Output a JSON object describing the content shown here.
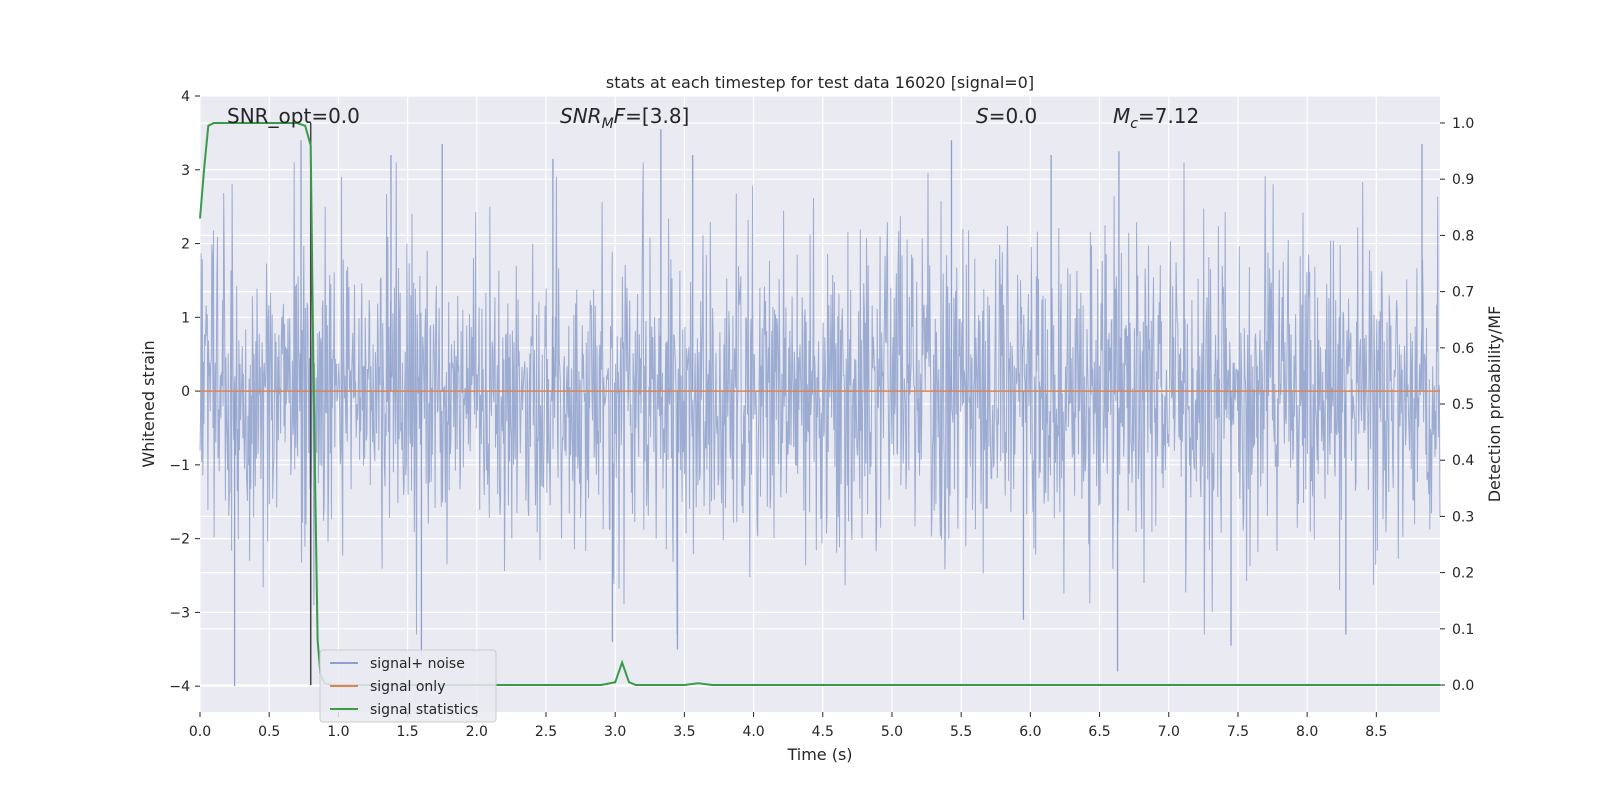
{
  "chart_data": {
    "type": "line",
    "title": "stats at each timestep for test data 16020 [signal=0]",
    "xlabel": "Time (s)",
    "ylabel": "Whitened strain",
    "y2label": "Detection probability/MF",
    "xlim": [
      0.0,
      8.96
    ],
    "ylim": [
      -4.35,
      4.0
    ],
    "y2lim": [
      -0.048,
      1.048
    ],
    "xticks": [
      0.0,
      0.5,
      1.0,
      1.5,
      2.0,
      2.5,
      3.0,
      3.5,
      4.0,
      4.5,
      5.0,
      5.5,
      6.0,
      6.5,
      7.0,
      7.5,
      8.0,
      8.5
    ],
    "xtick_labels": [
      "0.0",
      "0.5",
      "1.0",
      "1.5",
      "2.0",
      "2.5",
      "3.0",
      "3.5",
      "4.0",
      "4.5",
      "5.0",
      "5.5",
      "6.0",
      "6.5",
      "7.0",
      "7.5",
      "8.0",
      "8.5"
    ],
    "yticks": [
      -4,
      -3,
      -2,
      -1,
      0,
      1,
      2,
      3,
      4
    ],
    "ytick_labels": [
      "−4",
      "−3",
      "−2",
      "−1",
      "0",
      "1",
      "2",
      "3",
      "4"
    ],
    "y2ticks": [
      0.0,
      0.1,
      0.2,
      0.3,
      0.4,
      0.5,
      0.6,
      0.7,
      0.8,
      0.9,
      1.0
    ],
    "y2tick_labels": [
      "0.0",
      "0.1",
      "0.2",
      "0.3",
      "0.4",
      "0.5",
      "0.6",
      "0.7",
      "0.8",
      "0.9",
      "1.0"
    ],
    "grid": true,
    "legend_position": "bottom-left",
    "annotations": {
      "snr_opt": "SNR_opt=0.0",
      "snr_mf_base": "SNR",
      "snr_mf_sub": "M",
      "snr_mf_rest": "F",
      "snr_mf_value": "=[3.8]",
      "s_var": "S",
      "s_value": "=0.0",
      "mc_var": "M",
      "mc_sub": "c",
      "mc_value": "=7.12"
    },
    "vline_x": 0.8,
    "series": [
      {
        "name": "signal+ noise",
        "color": "#8da0cb",
        "axis": "left",
        "sampling": "noise, ~1.1 amplitude, extremes near ±3.5 to ±4",
        "spikes": [
          {
            "x": 0.25,
            "y": -4.0
          },
          {
            "x": 0.73,
            "y": 3.4
          },
          {
            "x": 1.38,
            "y": 3.2
          },
          {
            "x": 1.75,
            "y": 3.35
          },
          {
            "x": 1.6,
            "y": -3.6
          },
          {
            "x": 2.55,
            "y": 3.15
          },
          {
            "x": 2.98,
            "y": -3.4
          },
          {
            "x": 3.33,
            "y": 3.55
          },
          {
            "x": 3.45,
            "y": -3.5
          },
          {
            "x": 3.56,
            "y": 3.2
          },
          {
            "x": 5.43,
            "y": 3.4
          },
          {
            "x": 5.95,
            "y": -3.1
          },
          {
            "x": 6.15,
            "y": 3.2
          },
          {
            "x": 6.63,
            "y": -3.8
          },
          {
            "x": 6.64,
            "y": 3.25
          },
          {
            "x": 7.45,
            "y": -3.45
          },
          {
            "x": 8.28,
            "y": -3.3
          },
          {
            "x": 8.83,
            "y": 3.35
          }
        ]
      },
      {
        "name": "signal only",
        "color": "#dd8452",
        "axis": "left",
        "x": [
          0.0,
          8.96
        ],
        "y": [
          0.0,
          0.0
        ]
      },
      {
        "name": "signal statistics",
        "color": "#3a9a4a",
        "axis": "right",
        "x": [
          0.0,
          0.03,
          0.06,
          0.1,
          0.2,
          0.4,
          0.6,
          0.7,
          0.76,
          0.8,
          0.82,
          0.85,
          0.87,
          0.9,
          0.95,
          1.0,
          1.5,
          2.0,
          2.5,
          2.9,
          3.0,
          3.05,
          3.1,
          3.15,
          3.5,
          3.6,
          3.7,
          4.0,
          6.0,
          8.96
        ],
        "y": [
          0.83,
          0.92,
          0.995,
          1.0,
          1.0,
          1.0,
          1.0,
          1.0,
          0.995,
          0.96,
          0.55,
          0.08,
          0.02,
          0.003,
          0.0,
          0.0,
          0.0,
          0.0,
          0.0,
          0.0,
          0.005,
          0.04,
          0.005,
          0.0,
          0.0,
          0.003,
          0.0,
          0.0,
          0.0,
          0.0
        ]
      }
    ]
  }
}
